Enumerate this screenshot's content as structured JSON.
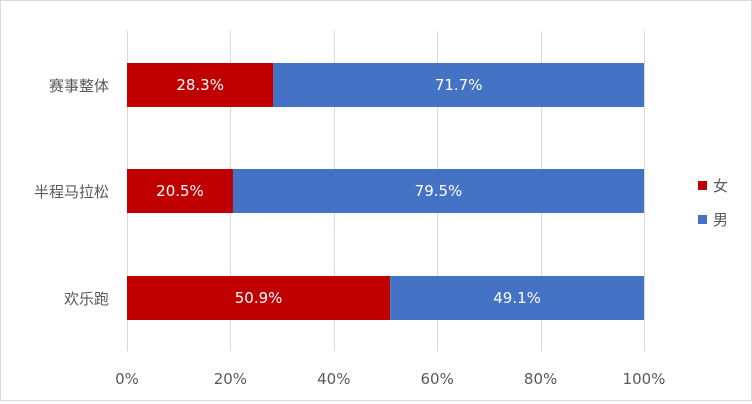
{
  "chart_data": {
    "type": "bar",
    "orientation": "horizontal",
    "stacked": "percent",
    "categories": [
      "赛事整体",
      "半程马拉松",
      "欢乐跑"
    ],
    "series": [
      {
        "name": "女",
        "color": "#C00000",
        "values": [
          28.3,
          20.5,
          50.9
        ],
        "labels": [
          "28.3%",
          "20.5%",
          "50.9%"
        ]
      },
      {
        "name": "男",
        "color": "#4472C4",
        "values": [
          71.7,
          79.5,
          49.1
        ],
        "labels": [
          "71.7%",
          "79.5%",
          "49.1%"
        ]
      }
    ],
    "xlim": [
      0,
      100
    ],
    "x_ticks": [
      0,
      20,
      40,
      60,
      80,
      100
    ],
    "x_tick_labels": [
      "0%",
      "20%",
      "40%",
      "60%",
      "80%",
      "100%"
    ],
    "grid": "vertical",
    "legend": "right",
    "title": "",
    "xlabel": "",
    "ylabel": ""
  }
}
